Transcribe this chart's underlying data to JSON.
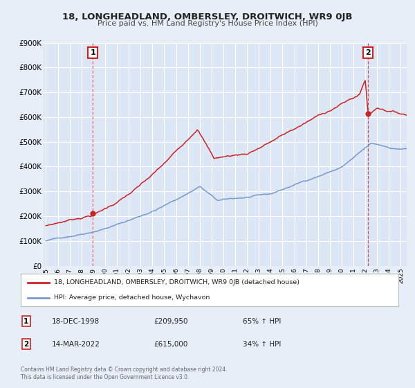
{
  "title": "18, LONGHEADLAND, OMBERSLEY, DROITWICH, WR9 0JB",
  "subtitle": "Price paid vs. HM Land Registry's House Price Index (HPI)",
  "bg_color": "#e8eef7",
  "plot_bg_color": "#dce6f5",
  "grid_color": "#ffffff",
  "ylim": [
    0,
    900000
  ],
  "yticks": [
    0,
    100000,
    200000,
    300000,
    400000,
    500000,
    600000,
    700000,
    800000,
    900000
  ],
  "ytick_labels": [
    "£0",
    "£100K",
    "£200K",
    "£300K",
    "£400K",
    "£500K",
    "£600K",
    "£700K",
    "£800K",
    "£900K"
  ],
  "xlim_start": 1994.8,
  "xlim_end": 2025.5,
  "xticks": [
    1995,
    1996,
    1997,
    1998,
    1999,
    2000,
    2001,
    2002,
    2003,
    2004,
    2005,
    2006,
    2007,
    2008,
    2009,
    2010,
    2011,
    2012,
    2013,
    2014,
    2015,
    2016,
    2017,
    2018,
    2019,
    2020,
    2021,
    2022,
    2023,
    2024,
    2025
  ],
  "red_line_color": "#cc2222",
  "blue_line_color": "#7799cc",
  "point1_x": 1998.96,
  "point1_y": 209950,
  "point2_x": 2022.21,
  "point2_y": 615000,
  "vline1_x": 1998.96,
  "vline2_x": 2022.21,
  "legend_label_red": "18, LONGHEADLAND, OMBERSLEY, DROITWICH, WR9 0JB (detached house)",
  "legend_label_blue": "HPI: Average price, detached house, Wychavon",
  "table_row1": [
    "1",
    "18-DEC-1998",
    "£209,950",
    "65% ↑ HPI"
  ],
  "table_row2": [
    "2",
    "14-MAR-2022",
    "£615,000",
    "34% ↑ HPI"
  ],
  "footer1": "Contains HM Land Registry data © Crown copyright and database right 2024.",
  "footer2": "This data is licensed under the Open Government Licence v3.0."
}
